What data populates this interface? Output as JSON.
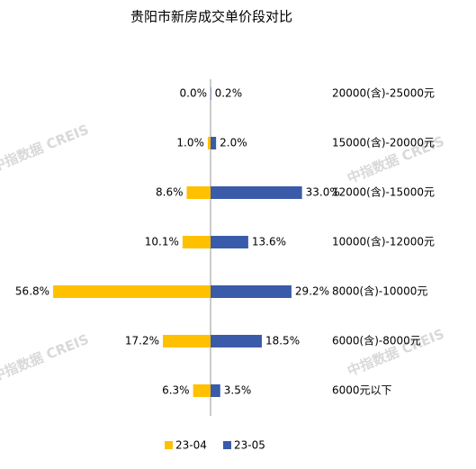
{
  "chart_data": {
    "type": "diverging-bar",
    "title": "贵阳市新房成交单价段对比",
    "categories": [
      "20000(含)-25000元",
      "15000(含)-20000元",
      "12000(含)-15000元",
      "10000(含)-12000元",
      "8000(含)-10000元",
      "6000(含)-8000元",
      "6000元以下"
    ],
    "series": [
      {
        "name": "23-04",
        "color": "#FFC000",
        "side": "left",
        "values": [
          0.0,
          1.0,
          8.6,
          10.1,
          56.8,
          17.2,
          6.3
        ],
        "value_labels": [
          "0.0%",
          "1.0%",
          "8.6%",
          "10.1%",
          "56.8%",
          "17.2%",
          "6.3%"
        ]
      },
      {
        "name": "23-05",
        "color": "#3A5BA9",
        "side": "right",
        "values": [
          0.2,
          2.0,
          33.0,
          13.6,
          29.2,
          18.5,
          3.5
        ],
        "value_labels": [
          "0.2%",
          "2.0%",
          "33.0%",
          "13.6%",
          "29.2%",
          "18.5%",
          "3.5%"
        ]
      }
    ],
    "legend": "bottom"
  },
  "watermark": "中指数据 CREIS"
}
